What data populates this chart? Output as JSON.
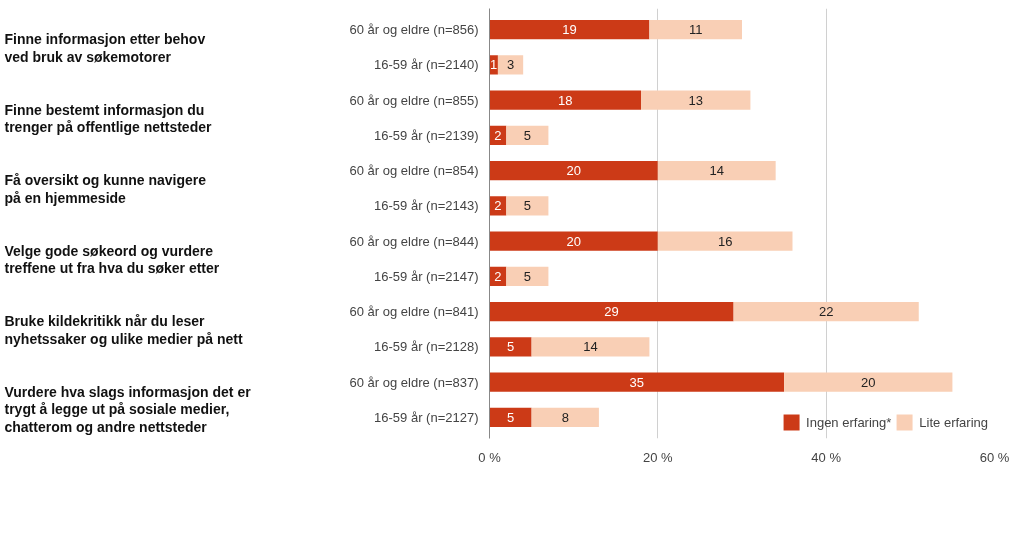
{
  "chart_data": {
    "type": "bar",
    "orientation": "horizontal",
    "stacked": true,
    "categories": [
      "60 år og eldre (n=856)",
      "16-59 år (n=2140)",
      "60 år og eldre (n=855)",
      "16-59 år (n=2139)",
      "60 år og eldre (n=854)",
      "16-59 år (n=2143)",
      "60 år og eldre (n=844)",
      "16-59 år (n=2147)",
      "60 år og eldre (n=841)",
      "16-59 år (n=2128)",
      "60 år og eldre (n=837)",
      "16-59 år (n=2127)"
    ],
    "series": [
      {
        "name": "Ingen erfaring*",
        "color": "#cc3a17",
        "values": [
          19,
          1,
          18,
          2,
          20,
          2,
          20,
          2,
          29,
          5,
          35,
          5
        ]
      },
      {
        "name": "Lite erfaring",
        "color": "#f9cfb5",
        "values": [
          11,
          3,
          13,
          5,
          14,
          5,
          16,
          5,
          22,
          14,
          20,
          8
        ]
      }
    ],
    "annotations": [
      "Finne informasjon etter behov\nved bruk av søkemotorer",
      "Finne bestemt informasjon du\ntrenger på offentlige nettsteder",
      "Få oversikt og kunne navigere\npå en hjemmeside",
      "Velge gode søkeord og vurdere\ntreffene ut fra hva du søker etter",
      "Bruke kildekritikk når du leser\nnyhetssaker og ulike medier på nett",
      "Vurdere hva slags informasjon det er\ntrygt å legge ut på sosiale medier,\nchatterom og andre nettsteder"
    ],
    "xlim": [
      0,
      60
    ],
    "xticks": [
      {
        "value": 0,
        "label": "0 %"
      },
      {
        "value": 20,
        "label": "20 %"
      },
      {
        "value": 40,
        "label": "40 %"
      },
      {
        "value": 60,
        "label": "60 %"
      }
    ],
    "grid": "x",
    "legend": "bottom right",
    "data_labels": true
  }
}
